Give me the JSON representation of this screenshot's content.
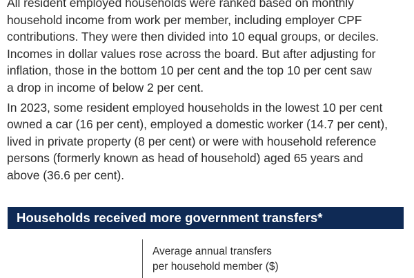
{
  "article": {
    "paragraph_1": [
      "All resident employed households were ranked based on monthly",
      "household income from work per member, including employer CPF",
      "contributions. They were then divided into 10 equal groups, or deciles.",
      "Incomes in dollar values rose across the board. But after adjusting for",
      "inflation, those in the bottom 10 per cent and the top 10 per cent saw",
      "a drop in income of below 2 per cent."
    ],
    "paragraph_2": [
      "In 2023, some resident employed households in the lowest 10 per cent",
      "owned a car (16 per cent), employed a domestic worker (14.7 per cent),",
      "lived in private property (8 per cent) or were with household reference",
      "persons (formerly known as head of household) aged 65 years and",
      "above (36.6 per cent)."
    ]
  },
  "section": {
    "title": "Households received more government transfers*"
  },
  "chart": {
    "header_lines": [
      "Average annual transfers",
      "per household member ($)"
    ]
  }
}
